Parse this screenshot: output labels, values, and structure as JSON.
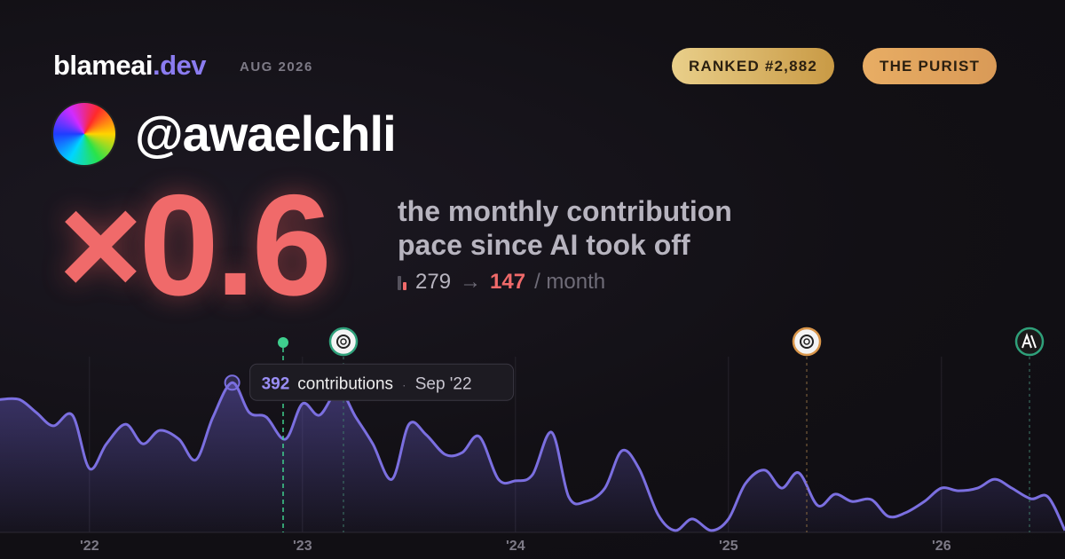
{
  "header": {
    "brand": "blameai",
    "brand_tld": ".dev",
    "period": "AUG 2026",
    "badges": [
      "RANKED #2,882",
      "THE PURIST"
    ]
  },
  "profile": {
    "handle": "@awaelchli"
  },
  "stat": {
    "multiplier": "×0.6",
    "caption_line1": "the monthly contribution",
    "caption_line2": "pace since AI took off",
    "before": 279,
    "arrow": "→",
    "after": 147,
    "unit": "/ month"
  },
  "chart_data": {
    "type": "area",
    "color": "#7b6fe0",
    "x": [
      2021.58,
      2021.67,
      2021.75,
      2021.83,
      2021.92,
      2022.0,
      2022.08,
      2022.17,
      2022.25,
      2022.33,
      2022.42,
      2022.5,
      2022.58,
      2022.67,
      2022.75,
      2022.83,
      2022.92,
      2023.0,
      2023.08,
      2023.17,
      2023.25,
      2023.33,
      2023.42,
      2023.5,
      2023.58,
      2023.67,
      2023.75,
      2023.83,
      2023.92,
      2024.0,
      2024.08,
      2024.17,
      2024.25,
      2024.33,
      2024.42,
      2024.5,
      2024.58,
      2024.67,
      2024.75,
      2024.83,
      2024.92,
      2025.0,
      2025.08,
      2025.17,
      2025.25,
      2025.33,
      2025.42,
      2025.5,
      2025.58,
      2025.67,
      2025.75,
      2025.83,
      2025.92,
      2026.0,
      2026.08,
      2026.17,
      2026.25,
      2026.33,
      2026.42,
      2026.5,
      2026.58
    ],
    "values": [
      348,
      348,
      314,
      279,
      307,
      167,
      232,
      283,
      232,
      267,
      244,
      190,
      302,
      392,
      314,
      302,
      244,
      337,
      307,
      372,
      302,
      232,
      139,
      283,
      256,
      204,
      209,
      251,
      139,
      135,
      151,
      262,
      93,
      81,
      116,
      214,
      167,
      46,
      5,
      35,
      5,
      35,
      128,
      163,
      116,
      156,
      70,
      100,
      81,
      86,
      42,
      51,
      81,
      116,
      109,
      116,
      139,
      116,
      88,
      93,
      5
    ],
    "xlim": [
      2021.58,
      2026.58
    ],
    "xticks": [
      {
        "value": 2022,
        "label": "'22"
      },
      {
        "value": 2023,
        "label": "'23"
      },
      {
        "value": 2024,
        "label": "'24"
      },
      {
        "value": 2025,
        "label": "'25"
      },
      {
        "value": 2026,
        "label": "'26"
      }
    ],
    "ylim": [
      0,
      460
    ],
    "tooltip": {
      "unit": "contributions",
      "date": "Sep '22",
      "index": 13
    }
  }
}
